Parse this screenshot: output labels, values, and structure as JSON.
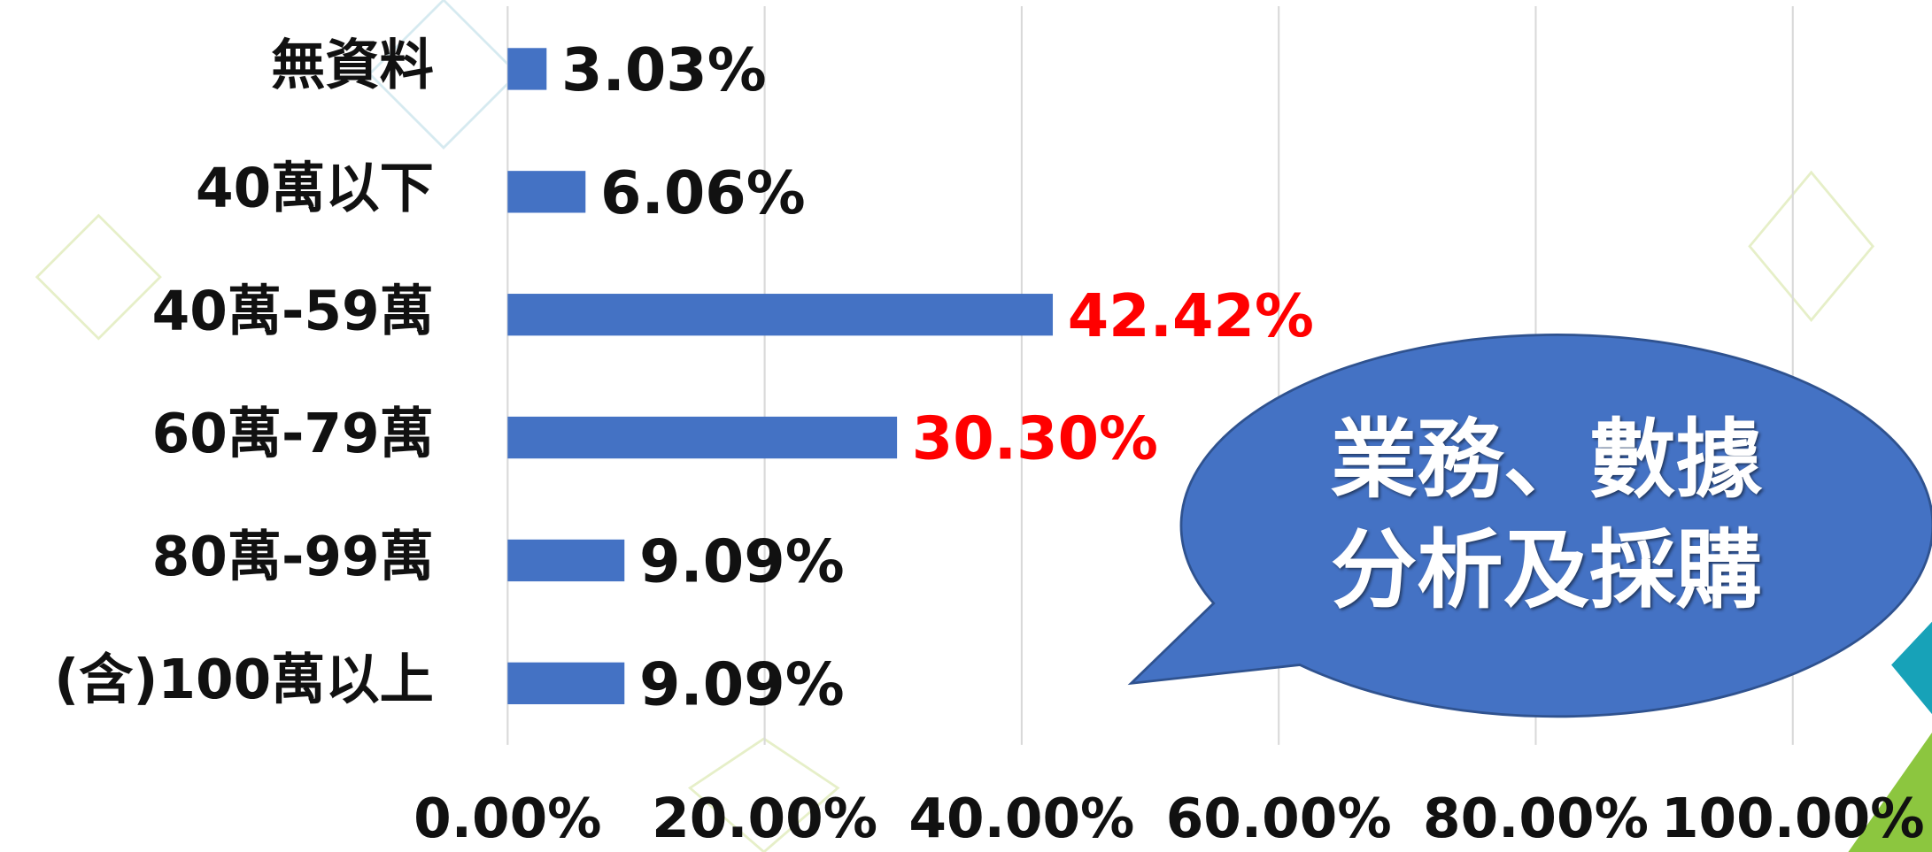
{
  "chart_data": {
    "type": "bar",
    "orientation": "horizontal",
    "categories": [
      "無資料",
      "40萬以下",
      "40萬-59萬",
      "60萬-79萬",
      "80萬-99萬",
      "(含)100萬以上"
    ],
    "values": [
      3.03,
      6.06,
      42.42,
      30.3,
      9.09,
      9.09
    ],
    "value_labels": [
      "3.03%",
      "6.06%",
      "42.42%",
      "30.30%",
      "9.09%",
      "9.09%"
    ],
    "value_label_colors": [
      "#111111",
      "#111111",
      "#ff0000",
      "#ff0000",
      "#111111",
      "#111111"
    ],
    "color": "#4472c4",
    "xlim": [
      0,
      100
    ],
    "xticks": [
      {
        "value": 0,
        "label": "0.00%"
      },
      {
        "value": 20,
        "label": "20.00%"
      },
      {
        "value": 40,
        "label": "40.00%"
      },
      {
        "value": 60,
        "label": "60.00%"
      },
      {
        "value": 80,
        "label": "80.00%"
      },
      {
        "value": 100,
        "label": "100.00%"
      }
    ],
    "grid": true,
    "annotation_lines": [
      "業務、數據",
      "分析及採購"
    ]
  }
}
